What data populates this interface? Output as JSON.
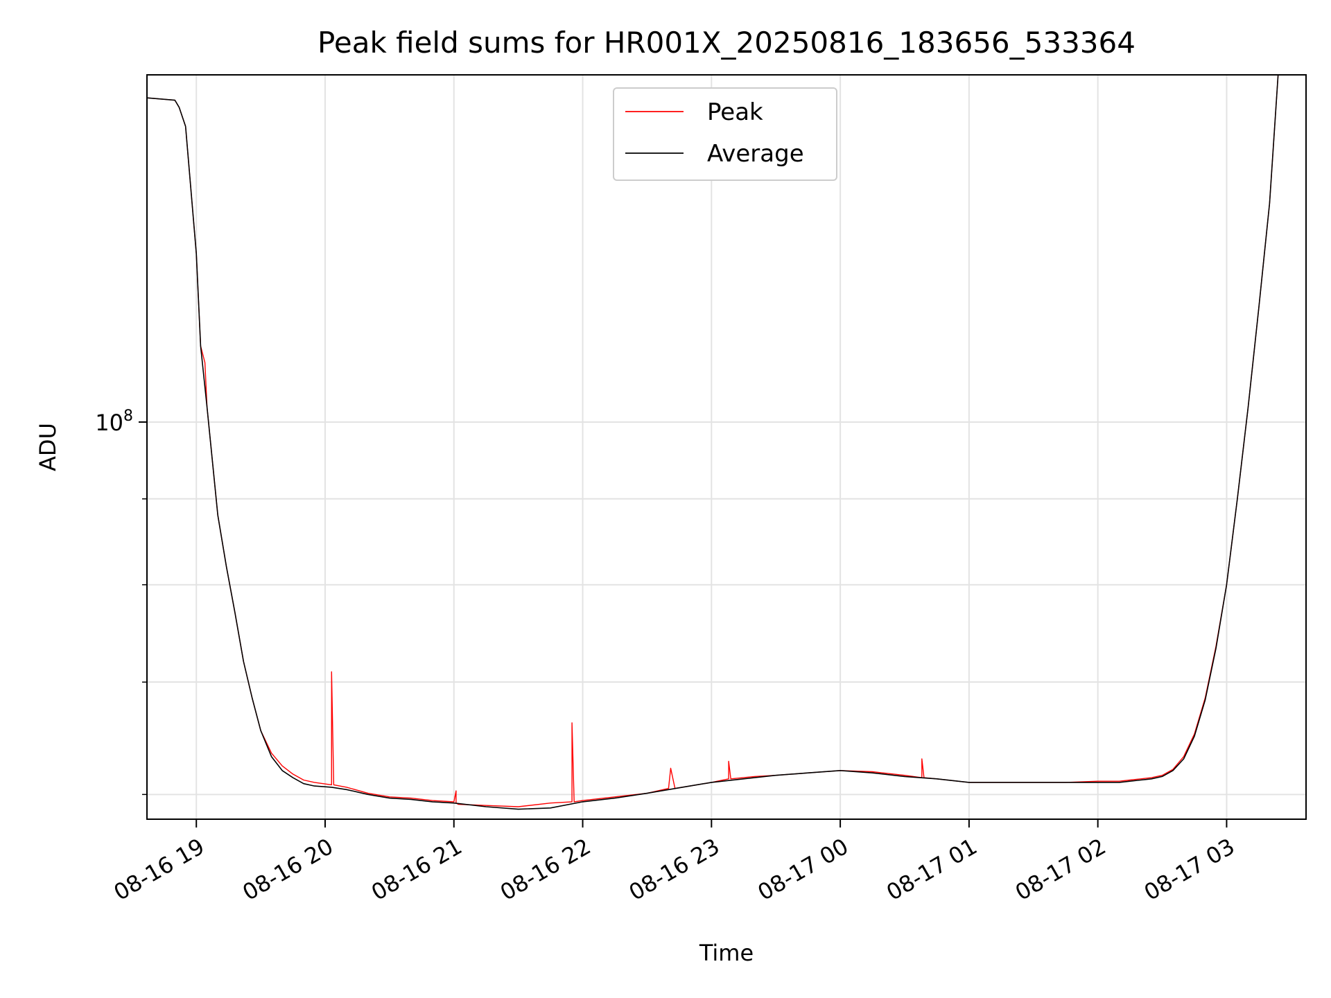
{
  "chart_data": {
    "type": "line",
    "title": "Peak field sums for HR001X_20250816_183656_533364",
    "xlabel": "Time",
    "ylabel": "ADU",
    "yscale": "log",
    "grid": true,
    "legend_position": "top-center",
    "xlim": [
      "2025-08-16 18:37",
      "2025-08-17 03:37"
    ],
    "ylim": [
      58000000,
      161000000
    ],
    "x_ticks": [
      {
        "t": "2025-08-16 19:00",
        "label": "08-16 19"
      },
      {
        "t": "2025-08-16 20:00",
        "label": "08-16 20"
      },
      {
        "t": "2025-08-16 21:00",
        "label": "08-16 21"
      },
      {
        "t": "2025-08-16 22:00",
        "label": "08-16 22"
      },
      {
        "t": "2025-08-16 23:00",
        "label": "08-16 23"
      },
      {
        "t": "2025-08-17 00:00",
        "label": "08-17 00"
      },
      {
        "t": "2025-08-17 01:00",
        "label": "08-17 01"
      },
      {
        "t": "2025-08-17 02:00",
        "label": "08-17 02"
      },
      {
        "t": "2025-08-17 03:00",
        "label": "08-17 03"
      }
    ],
    "y_major_ticks": [
      {
        "value": 100000000,
        "base": "10",
        "exp": "8"
      }
    ],
    "y_minor_ticks": [
      60000000,
      70000000,
      80000000,
      90000000,
      200000000
    ],
    "series": [
      {
        "name": "Peak",
        "color": "#ff0000",
        "x": [
          "2025-08-16 18:37",
          "2025-08-16 18:50",
          "2025-08-16 18:52",
          "2025-08-16 18:55",
          "2025-08-16 19:00",
          "2025-08-16 19:02",
          "2025-08-16 19:04",
          "2025-08-16 19:05",
          "2025-08-16 19:10",
          "2025-08-16 19:14",
          "2025-08-16 19:18",
          "2025-08-16 19:22",
          "2025-08-16 19:26",
          "2025-08-16 19:30",
          "2025-08-16 19:35",
          "2025-08-16 19:40",
          "2025-08-16 19:45",
          "2025-08-16 19:50",
          "2025-08-16 19:55",
          "2025-08-16 20:03",
          "2025-08-16 20:03",
          "2025-08-16 20:04",
          "2025-08-16 20:10",
          "2025-08-16 20:20",
          "2025-08-16 20:30",
          "2025-08-16 20:40",
          "2025-08-16 20:50",
          "2025-08-16 21:00",
          "2025-08-16 21:01",
          "2025-08-16 21:01",
          "2025-08-16 21:02",
          "2025-08-16 21:15",
          "2025-08-16 21:30",
          "2025-08-16 21:45",
          "2025-08-16 21:55",
          "2025-08-16 21:55",
          "2025-08-16 21:56",
          "2025-08-16 22:00",
          "2025-08-16 22:15",
          "2025-08-16 22:30",
          "2025-08-16 22:40",
          "2025-08-16 22:41",
          "2025-08-16 22:43",
          "2025-08-16 22:50",
          "2025-08-16 23:00",
          "2025-08-16 23:08",
          "2025-08-16 23:08",
          "2025-08-16 23:09",
          "2025-08-16 23:20",
          "2025-08-16 23:30",
          "2025-08-16 23:45",
          "2025-08-17 00:00",
          "2025-08-17 00:15",
          "2025-08-17 00:30",
          "2025-08-17 00:38",
          "2025-08-17 00:38",
          "2025-08-17 00:39",
          "2025-08-17 00:45",
          "2025-08-17 01:00",
          "2025-08-17 01:15",
          "2025-08-17 01:30",
          "2025-08-17 01:45",
          "2025-08-17 02:00",
          "2025-08-17 02:10",
          "2025-08-17 02:15",
          "2025-08-17 02:20",
          "2025-08-17 02:25",
          "2025-08-17 02:30",
          "2025-08-17 02:35",
          "2025-08-17 02:40",
          "2025-08-17 02:45",
          "2025-08-17 02:50",
          "2025-08-17 02:55",
          "2025-08-17 03:00",
          "2025-08-17 03:05",
          "2025-08-17 03:10",
          "2025-08-17 03:15",
          "2025-08-17 03:20",
          "2025-08-17 03:24"
        ],
        "y": [
          156000000,
          155500000,
          154000000,
          150000000,
          126000000,
          111000000,
          108500000,
          102000000,
          88000000,
          82000000,
          77000000,
          72000000,
          68500000,
          65500000,
          63500000,
          62400000,
          61700000,
          61200000,
          61000000,
          60800000,
          71000000,
          60800000,
          60600000,
          60100000,
          59800000,
          59700000,
          59500000,
          59400000,
          60300000,
          59300000,
          59200000,
          59100000,
          59000000,
          59300000,
          59400000,
          66200000,
          59400000,
          59500000,
          59800000,
          60100000,
          60500000,
          62200000,
          60500000,
          60700000,
          61000000,
          61300000,
          62800000,
          61300000,
          61500000,
          61600000,
          61800000,
          62000000,
          61900000,
          61600000,
          61400000,
          63000000,
          61400000,
          61300000,
          61000000,
          61000000,
          61000000,
          61000000,
          61100000,
          61100000,
          61200000,
          61300000,
          61400000,
          61600000,
          62100000,
          63200000,
          65200000,
          68500000,
          73500000,
          80000000,
          90000000,
          102000000,
          117000000,
          135000000,
          161000000
        ]
      },
      {
        "name": "Average",
        "color": "#000000",
        "x": [
          "2025-08-16 18:37",
          "2025-08-16 18:50",
          "2025-08-16 18:52",
          "2025-08-16 18:55",
          "2025-08-16 19:00",
          "2025-08-16 19:02",
          "2025-08-16 19:05",
          "2025-08-16 19:10",
          "2025-08-16 19:14",
          "2025-08-16 19:18",
          "2025-08-16 19:22",
          "2025-08-16 19:26",
          "2025-08-16 19:30",
          "2025-08-16 19:35",
          "2025-08-16 19:40",
          "2025-08-16 19:45",
          "2025-08-16 19:50",
          "2025-08-16 19:55",
          "2025-08-16 20:03",
          "2025-08-16 20:10",
          "2025-08-16 20:20",
          "2025-08-16 20:30",
          "2025-08-16 20:40",
          "2025-08-16 20:50",
          "2025-08-16 21:00",
          "2025-08-16 21:15",
          "2025-08-16 21:30",
          "2025-08-16 21:45",
          "2025-08-16 22:00",
          "2025-08-16 22:15",
          "2025-08-16 22:30",
          "2025-08-16 22:40",
          "2025-08-16 22:50",
          "2025-08-16 23:00",
          "2025-08-16 23:20",
          "2025-08-16 23:30",
          "2025-08-16 23:45",
          "2025-08-17 00:00",
          "2025-08-17 00:15",
          "2025-08-17 00:30",
          "2025-08-17 00:45",
          "2025-08-17 01:00",
          "2025-08-17 01:15",
          "2025-08-17 01:30",
          "2025-08-17 01:45",
          "2025-08-17 02:00",
          "2025-08-17 02:10",
          "2025-08-17 02:15",
          "2025-08-17 02:20",
          "2025-08-17 02:25",
          "2025-08-17 02:30",
          "2025-08-17 02:35",
          "2025-08-17 02:40",
          "2025-08-17 02:45",
          "2025-08-17 02:50",
          "2025-08-17 02:55",
          "2025-08-17 03:00",
          "2025-08-17 03:05",
          "2025-08-17 03:10",
          "2025-08-17 03:15",
          "2025-08-17 03:20",
          "2025-08-17 03:24"
        ],
        "y": [
          156000000,
          155500000,
          154000000,
          150000000,
          126000000,
          111000000,
          102000000,
          88000000,
          82000000,
          77000000,
          72000000,
          68500000,
          65500000,
          63200000,
          62000000,
          61400000,
          60900000,
          60700000,
          60600000,
          60400000,
          60000000,
          59700000,
          59600000,
          59400000,
          59300000,
          59000000,
          58800000,
          58900000,
          59400000,
          59700000,
          60100000,
          60400000,
          60700000,
          61000000,
          61400000,
          61600000,
          61800000,
          62000000,
          61800000,
          61500000,
          61300000,
          61000000,
          61000000,
          61000000,
          61000000,
          61000000,
          61000000,
          61100000,
          61200000,
          61300000,
          61500000,
          62000000,
          63000000,
          65000000,
          68300000,
          73300000,
          80000000,
          90000000,
          102000000,
          117000000,
          135000000,
          161000000
        ]
      }
    ]
  }
}
